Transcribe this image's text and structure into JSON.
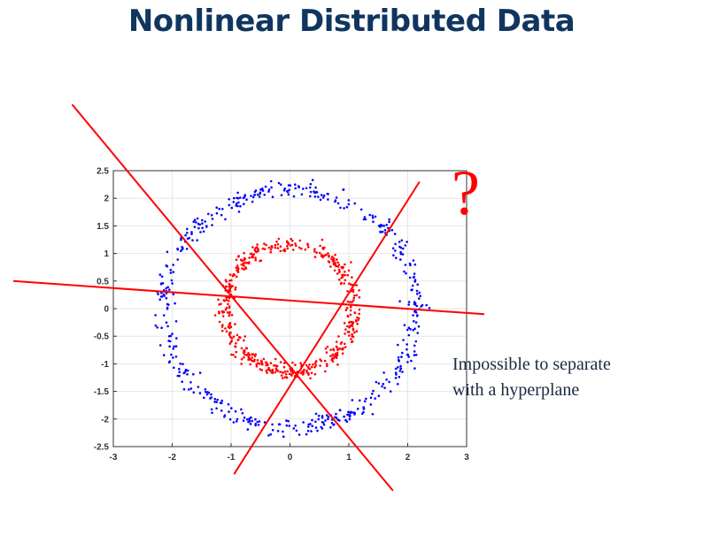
{
  "title": "Nonlinear Distributed Data",
  "question_mark": "?",
  "annotation": {
    "line1": "Impossible to separate",
    "line2": "with a hyperplane"
  },
  "colors": {
    "title": "#10365f",
    "outer_ring": "#0000ff",
    "inner_ring": "#ff0000",
    "hyperplane": "#ff0000"
  },
  "chart_data": {
    "type": "scatter",
    "title": "",
    "xlabel": "",
    "ylabel": "",
    "xlim": [
      -3,
      3
    ],
    "ylim": [
      -2.5,
      2.5
    ],
    "xticks": [
      "-3",
      "-2",
      "-1",
      "0",
      "1",
      "2",
      "3"
    ],
    "yticks": [
      "2.5",
      "2",
      "1.5",
      "1",
      "0.5",
      "0",
      "-0.5",
      "-1",
      "-1.5",
      "-2",
      "-2.5"
    ],
    "grid": true,
    "series": [
      {
        "color": "#0000ff",
        "shape": "ring",
        "center": [
          0,
          0
        ],
        "radius": 2.15,
        "noise": 0.08,
        "count": 500
      },
      {
        "color": "#ff0000",
        "shape": "ring",
        "center": [
          0,
          0
        ],
        "radius_x": 1.1,
        "radius_y": 1.15,
        "noise": 0.07,
        "count": 500
      }
    ],
    "annotation_lines": [
      {
        "color": "#ff0000",
        "from": [
          -3.7,
          3.7
        ],
        "to": [
          1.75,
          -3.3
        ]
      },
      {
        "color": "#ff0000",
        "from": [
          -4.7,
          0.5
        ],
        "to": [
          3.3,
          -0.1
        ]
      },
      {
        "color": "#ff0000",
        "from": [
          -0.95,
          -3.0
        ],
        "to": [
          2.2,
          2.3
        ]
      }
    ]
  }
}
